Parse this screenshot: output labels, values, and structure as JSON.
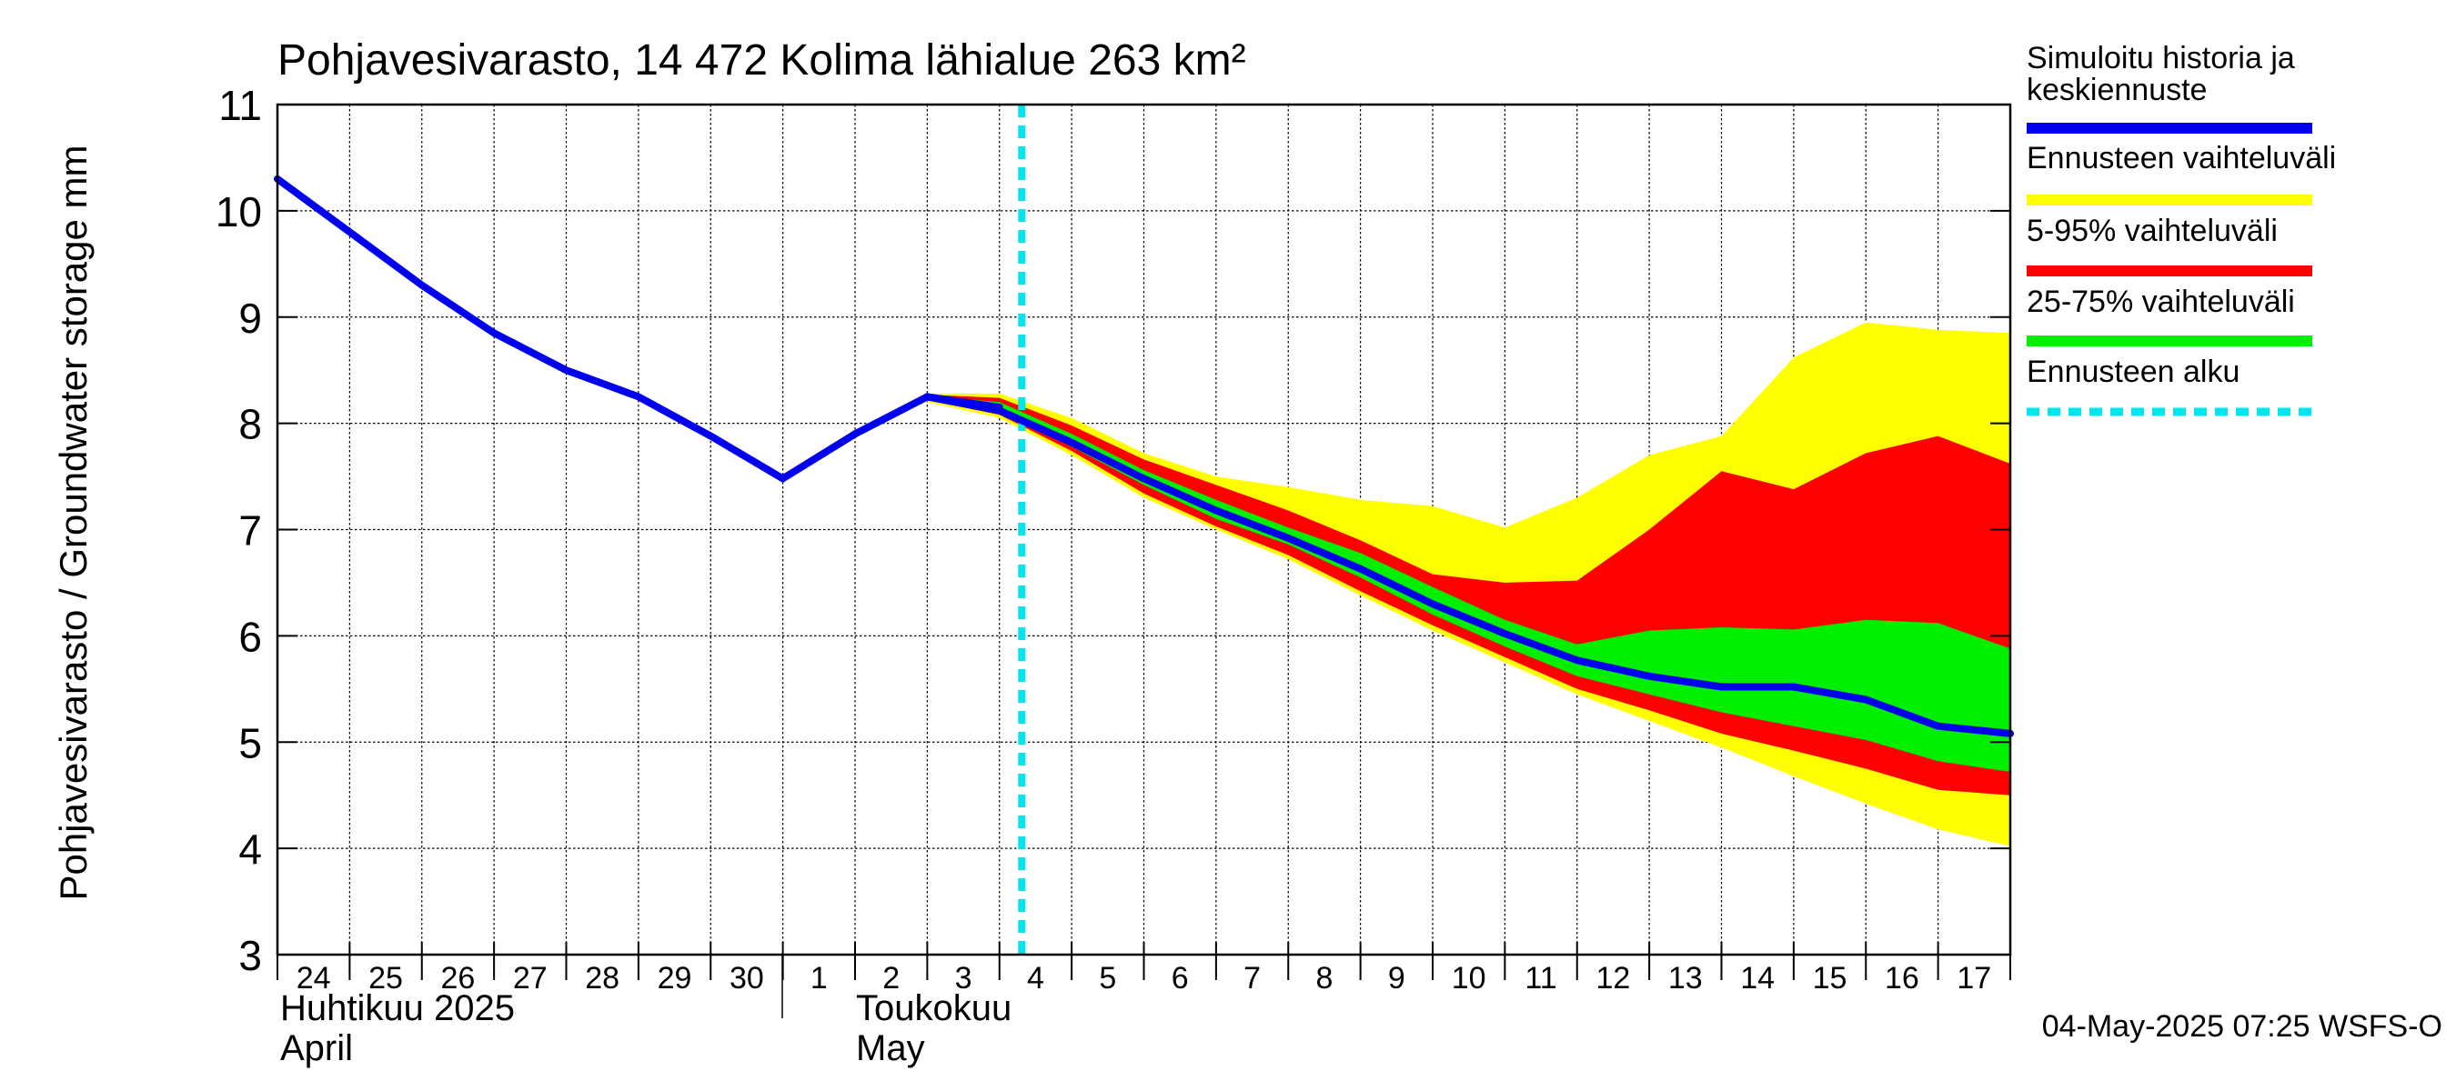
{
  "chart_data": {
    "type": "area",
    "title": "Pohjavesivarasto, 14 472 Kolima lähialue 263 km²",
    "ylabel": "Pohjavesivarasto / Groundwater storage   mm",
    "ylim": [
      3,
      11
    ],
    "yticks": [
      "3",
      "4",
      "5",
      "6",
      "7",
      "8",
      "9",
      "10",
      "11"
    ],
    "x_day_labels": [
      "24",
      "25",
      "26",
      "27",
      "28",
      "29",
      "30",
      "1",
      "2",
      "3",
      "4",
      "5",
      "6",
      "7",
      "8",
      "9",
      "10",
      "11",
      "12",
      "13",
      "14",
      "15",
      "16",
      "17"
    ],
    "month_labels": {
      "april_fi": "Huhtikuu  2025",
      "april_en": "April",
      "may_fi": "Toukokuu",
      "may_en": "May"
    },
    "dates": [
      "2025-04-24",
      "2025-04-25",
      "2025-04-26",
      "2025-04-27",
      "2025-04-28",
      "2025-04-29",
      "2025-04-30",
      "2025-05-01",
      "2025-05-02",
      "2025-05-03",
      "2025-05-04",
      "2025-05-05",
      "2025-05-06",
      "2025-05-07",
      "2025-05-08",
      "2025-05-09",
      "2025-05-10",
      "2025-05-11",
      "2025-05-12",
      "2025-05-13",
      "2025-05-14",
      "2025-05-15",
      "2025-05-16",
      "2025-05-17",
      "2025-05-18"
    ],
    "history": {
      "dates": [
        "2025-04-24",
        "2025-04-25",
        "2025-04-26",
        "2025-04-27",
        "2025-04-28",
        "2025-04-29",
        "2025-04-30",
        "2025-05-01",
        "2025-05-02",
        "2025-05-03",
        "2025-05-04"
      ],
      "values": [
        10.3,
        9.8,
        9.3,
        8.85,
        8.5,
        8.25,
        7.88,
        7.48,
        7.9,
        8.25,
        8.15
      ]
    },
    "forecast": {
      "dates": [
        "2025-05-03",
        "2025-05-04",
        "2025-05-05",
        "2025-05-06",
        "2025-05-07",
        "2025-05-08",
        "2025-05-09",
        "2025-05-10",
        "2025-05-11",
        "2025-05-12",
        "2025-05-13",
        "2025-05-14",
        "2025-05-15",
        "2025-05-16",
        "2025-05-17",
        "2025-05-18"
      ],
      "median": [
        8.25,
        8.12,
        7.82,
        7.48,
        7.18,
        6.92,
        6.63,
        6.3,
        6.02,
        5.77,
        5.62,
        5.52,
        5.52,
        5.4,
        5.15,
        5.08
      ],
      "range_min": [
        8.2,
        8.05,
        7.7,
        7.3,
        7.0,
        6.72,
        6.38,
        6.05,
        5.75,
        5.45,
        5.2,
        4.95,
        4.68,
        4.42,
        4.18,
        4.02
      ],
      "range_max": [
        8.28,
        8.28,
        8.05,
        7.72,
        7.5,
        7.4,
        7.28,
        7.22,
        7.02,
        7.3,
        7.7,
        7.88,
        8.62,
        8.95,
        8.88,
        8.85
      ],
      "p5": [
        8.22,
        8.08,
        7.74,
        7.34,
        7.03,
        6.76,
        6.42,
        6.1,
        5.8,
        5.5,
        5.3,
        5.08,
        4.92,
        4.75,
        4.55,
        4.5
      ],
      "p95": [
        8.27,
        8.24,
        7.98,
        7.66,
        7.42,
        7.18,
        6.9,
        6.58,
        6.5,
        6.52,
        7.0,
        7.55,
        7.38,
        7.72,
        7.88,
        7.62
      ],
      "p25": [
        8.23,
        8.1,
        7.78,
        7.42,
        7.1,
        6.86,
        6.55,
        6.2,
        5.9,
        5.62,
        5.45,
        5.28,
        5.15,
        5.02,
        4.82,
        4.72
      ],
      "p75": [
        8.26,
        8.2,
        7.9,
        7.56,
        7.28,
        7.02,
        6.78,
        6.46,
        6.15,
        5.92,
        6.05,
        6.08,
        6.06,
        6.15,
        6.12,
        5.88
      ]
    },
    "forecast_start": "2025-05-04 07:25",
    "legend_position": "right",
    "legend": [
      {
        "label": "Simuloitu historia ja keskiennuste",
        "color": "#0000ee",
        "style": "solid"
      },
      {
        "label": "Ennusteen vaihteluväli",
        "color": "#ffff00",
        "style": "solid"
      },
      {
        "label": "5-95% vaihteluväli",
        "color": "#ff0000",
        "style": "solid"
      },
      {
        "label": "25-75% vaihteluväli",
        "color": "#00ee00",
        "style": "solid"
      },
      {
        "label": "Ennusteen alku",
        "color": "#00e5ee",
        "style": "dashed"
      }
    ],
    "grid": true,
    "footer": "04-May-2025 07:25 WSFS-O"
  }
}
